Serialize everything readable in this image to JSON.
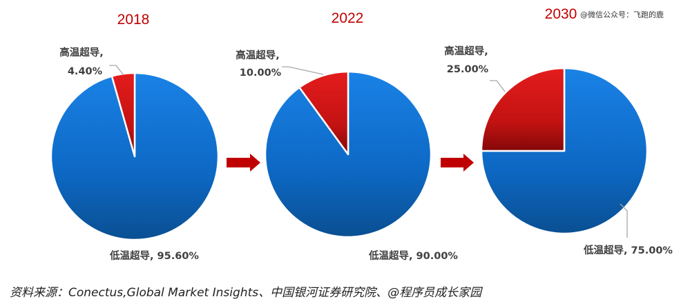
{
  "watermark": "@微信公众号：飞跑的鹿",
  "source_note": "资料来源：Conectus,Global Market Insights、中国银河证券研究院、@程序员成长家园",
  "colors": {
    "year": "#c00000",
    "low_temp": "#0d6fd3",
    "high_temp": "#c81414",
    "arrow": "#c00000"
  },
  "chart_data": [
    {
      "type": "pie",
      "title": "2018",
      "slices": [
        {
          "name": "低温超导",
          "value": 95.6,
          "label": "低温超导, 95.60%"
        },
        {
          "name": "高温超导",
          "value": 4.4,
          "label_name": "高温超导,",
          "label_value": "4.40%"
        }
      ]
    },
    {
      "type": "pie",
      "title": "2022",
      "slices": [
        {
          "name": "低温超导",
          "value": 90.0,
          "label": "低温超导, 90.00%"
        },
        {
          "name": "高温超导",
          "value": 10.0,
          "label_name": "高温超导,",
          "label_value": "10.00%"
        }
      ]
    },
    {
      "type": "pie",
      "title": "2030",
      "slices": [
        {
          "name": "低温超导",
          "value": 75.0,
          "label": "低温超导, 75.00%"
        },
        {
          "name": "高温超导",
          "value": 25.0,
          "label_name": "高温超导,",
          "label_value": "25.00%"
        }
      ]
    }
  ]
}
